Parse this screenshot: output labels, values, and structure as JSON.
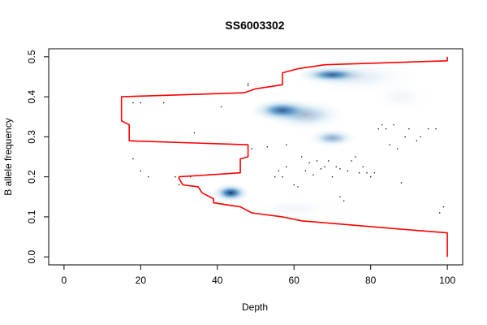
{
  "chart_data": {
    "type": "scatter",
    "title": "SS6003302",
    "xlabel": "Depth",
    "ylabel": "B allele frequency",
    "xlim": [
      0,
      100
    ],
    "ylim": [
      0,
      0.5
    ],
    "xticks": [
      "0",
      "20",
      "40",
      "60",
      "80",
      "100"
    ],
    "yticks": [
      "0.0",
      "0.1",
      "0.2",
      "0.3",
      "0.4",
      "0.5"
    ],
    "xtick_values": [
      0,
      20,
      40,
      60,
      80,
      100
    ],
    "ytick_values": [
      0,
      0.1,
      0.2,
      0.3,
      0.4,
      0.5
    ],
    "grid": false,
    "density_blobs": [
      {
        "x": 43.5,
        "y": 0.16,
        "sx": 2.3,
        "sy": 0.011,
        "strength": 1.0
      },
      {
        "x": 57,
        "y": 0.366,
        "sx": 3.8,
        "sy": 0.013,
        "strength": 0.95
      },
      {
        "x": 63,
        "y": 0.355,
        "sx": 5,
        "sy": 0.018,
        "strength": 0.35
      },
      {
        "x": 70,
        "y": 0.455,
        "sx": 4.2,
        "sy": 0.01,
        "strength": 0.85
      },
      {
        "x": 70,
        "y": 0.297,
        "sx": 3,
        "sy": 0.011,
        "strength": 0.45
      },
      {
        "x": 76,
        "y": 0.45,
        "sx": 8,
        "sy": 0.02,
        "strength": 0.12
      },
      {
        "x": 88,
        "y": 0.4,
        "sx": 4,
        "sy": 0.02,
        "strength": 0.05
      },
      {
        "x": 60,
        "y": 0.12,
        "sx": 6,
        "sy": 0.015,
        "strength": 0.05
      }
    ],
    "points": [
      [
        18,
        0.385
      ],
      [
        20,
        0.385
      ],
      [
        26,
        0.385
      ],
      [
        41,
        0.375
      ],
      [
        48,
        0.428
      ],
      [
        48,
        0.433
      ],
      [
        34,
        0.31
      ],
      [
        18,
        0.29
      ],
      [
        18,
        0.29
      ],
      [
        18,
        0.245
      ],
      [
        20,
        0.215
      ],
      [
        22,
        0.2
      ],
      [
        29,
        0.2
      ],
      [
        30,
        0.18
      ],
      [
        33,
        0.2
      ],
      [
        49,
        0.27
      ],
      [
        53,
        0.275
      ],
      [
        58,
        0.28
      ],
      [
        55,
        0.2
      ],
      [
        56,
        0.215
      ],
      [
        57,
        0.2
      ],
      [
        58,
        0.225
      ],
      [
        60,
        0.18
      ],
      [
        61,
        0.175
      ],
      [
        62,
        0.25
      ],
      [
        63,
        0.215
      ],
      [
        64,
        0.235
      ],
      [
        65,
        0.205
      ],
      [
        66,
        0.24
      ],
      [
        67,
        0.22
      ],
      [
        68,
        0.225
      ],
      [
        69,
        0.24
      ],
      [
        70,
        0.2
      ],
      [
        71,
        0.225
      ],
      [
        72,
        0.22
      ],
      [
        72,
        0.15
      ],
      [
        73,
        0.14
      ],
      [
        74,
        0.215
      ],
      [
        75,
        0.24
      ],
      [
        76,
        0.25
      ],
      [
        77,
        0.21
      ],
      [
        78,
        0.225
      ],
      [
        79,
        0.21
      ],
      [
        80,
        0.2
      ],
      [
        81,
        0.21
      ],
      [
        82,
        0.32
      ],
      [
        83,
        0.33
      ],
      [
        84,
        0.32
      ],
      [
        85,
        0.28
      ],
      [
        86,
        0.33
      ],
      [
        87,
        0.27
      ],
      [
        88,
        0.185
      ],
      [
        89,
        0.3
      ],
      [
        90,
        0.32
      ],
      [
        92,
        0.29
      ],
      [
        93,
        0.3
      ],
      [
        95,
        0.32
      ],
      [
        97,
        0.32
      ],
      [
        98,
        0.11
      ],
      [
        99,
        0.125
      ]
    ],
    "series": [
      {
        "type": "line",
        "color": "#ff0000",
        "x": [
          100,
          100,
          87,
          62,
          57,
          49,
          46,
          39,
          39,
          36,
          35,
          31,
          30,
          30,
          46,
          46,
          48,
          48,
          17,
          17,
          15,
          15,
          47,
          50,
          57,
          57,
          61,
          68,
          100,
          100
        ],
        "y": [
          0.0,
          0.06,
          0.07,
          0.09,
          0.1,
          0.11,
          0.125,
          0.135,
          0.145,
          0.16,
          0.175,
          0.18,
          0.195,
          0.2,
          0.21,
          0.245,
          0.25,
          0.28,
          0.29,
          0.33,
          0.34,
          0.4,
          0.41,
          0.42,
          0.43,
          0.46,
          0.47,
          0.48,
          0.49,
          0.5
        ]
      }
    ]
  }
}
